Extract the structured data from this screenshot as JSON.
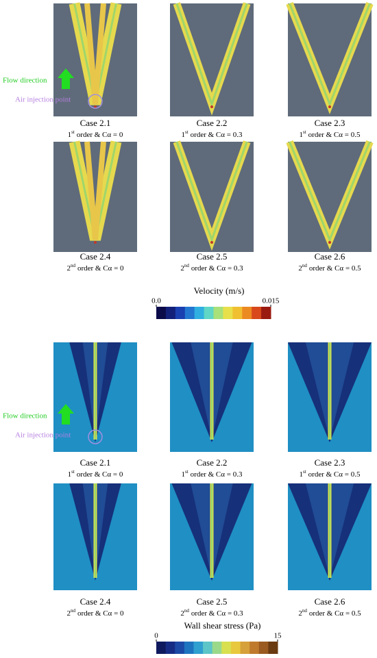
{
  "velocity": {
    "annotations": {
      "flow": "Flow direction",
      "injection": "Air injection point"
    },
    "panels": [
      {
        "case": "Case 2.1",
        "order_num": "1",
        "order_sup": "st",
        "text": "order & Cα = 0"
      },
      {
        "case": "Case 2.2",
        "order_num": "1",
        "order_sup": "st",
        "text": "order & Cα = 0.3"
      },
      {
        "case": "Case 2.3",
        "order_num": "1",
        "order_sup": "st",
        "text": "order & Cα = 0.5"
      },
      {
        "case": "Case 2.4",
        "order_num": "2",
        "order_sup": "nd",
        "text": "order & Cα = 0"
      },
      {
        "case": "Case 2.5",
        "order_num": "2",
        "order_sup": "nd",
        "text": "order & Cα = 0.3"
      },
      {
        "case": "Case 2.6",
        "order_num": "2",
        "order_sup": "nd",
        "text": "order & Cα = 0.5"
      }
    ],
    "colorbar": {
      "title": "Velocity (m/s)",
      "lim": [
        0,
        0.015
      ],
      "ticks": [
        {
          "value": 0,
          "label": "0.0"
        },
        0.015
      ]
    }
  },
  "wall_shear": {
    "annotations": {
      "flow": "Flow direction",
      "injection": "Air injection point"
    },
    "panels": [
      {
        "case": "Case 2.1",
        "order_num": "1",
        "order_sup": "st",
        "text": "order & Cα = 0"
      },
      {
        "case": "Case 2.2",
        "order_num": "1",
        "order_sup": "st",
        "text": "order & Cα = 0.3"
      },
      {
        "case": "Case 2.3",
        "order_num": "1",
        "order_sup": "st",
        "text": "order & Cα = 0.5"
      },
      {
        "case": "Case 2.4",
        "order_num": "2",
        "order_sup": "nd",
        "text": "order & Cα = 0"
      },
      {
        "case": "Case 2.5",
        "order_num": "2",
        "order_sup": "nd",
        "text": "order & Cα = 0.3"
      },
      {
        "case": "Case 2.6",
        "order_num": "2",
        "order_sup": "nd",
        "text": "order & Cα = 0.5"
      }
    ],
    "colorbar": {
      "title": "Wall shear stress (Pa)",
      "lim": [
        0,
        15
      ],
      "ticks": [
        0,
        15
      ]
    }
  }
}
